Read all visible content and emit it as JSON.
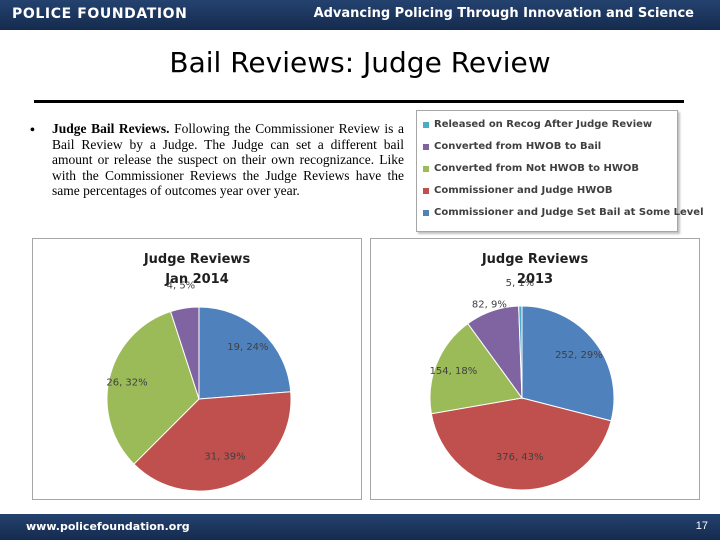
{
  "header": {
    "brand": "POLICE FOUNDATION",
    "tagline": "Advancing Policing Through Innovation and Science"
  },
  "slide": {
    "title": "Bail Reviews: Judge Review",
    "bullet_lead": "Judge Bail Reviews.",
    "bullet_body": "Following the Commissioner Review is a Bail Review by a Judge. The Judge can set a different bail amount or release the suspect on their own recognizance. Like with the Commissioner Reviews the Judge Reviews have the same percentages of outcomes year over year."
  },
  "legend": [
    {
      "label": "Released on Recog After Judge Review",
      "color": "#4bacc6"
    },
    {
      "label": "Converted from HWOB to Bail",
      "color": "#8064a2"
    },
    {
      "label": "Converted from Not HWOB to HWOB",
      "color": "#9bbb59"
    },
    {
      "label": "Commissioner and Judge HWOB",
      "color": "#c0504d"
    },
    {
      "label": "Commissioner and Judge Set Bail at Some Level",
      "color": "#4f81bd"
    }
  ],
  "colors": {
    "released": "#4bacc6",
    "hwob_to_bail": "#8064a2",
    "not_hwob_to_hwob": "#9bbb59",
    "both_hwob": "#c0504d",
    "set_bail": "#4f81bd",
    "bar": "#1b365f"
  },
  "chart_data": [
    {
      "type": "pie",
      "title_line1": "Judge Reviews",
      "title_line2": "Jan 2014",
      "slices": [
        {
          "category": "Commissioner and Judge Set Bail at Some Level",
          "value": 19,
          "label": "19, 24%",
          "color": "#4f81bd"
        },
        {
          "category": "Commissioner and Judge HWOB",
          "value": 31,
          "label": "31, 39%",
          "color": "#c0504d"
        },
        {
          "category": "Converted from Not HWOB to HWOB",
          "value": 26,
          "label": "26, 32%",
          "color": "#9bbb59"
        },
        {
          "category": "Converted from HWOB to Bail",
          "value": 4,
          "label": "4, 5%",
          "color": "#8064a2"
        }
      ]
    },
    {
      "type": "pie",
      "title_line1": "Judge Reviews",
      "title_line2": "2013",
      "slices": [
        {
          "category": "Commissioner and Judge Set Bail at Some Level",
          "value": 252,
          "label": "252, 29%",
          "color": "#4f81bd"
        },
        {
          "category": "Commissioner and Judge HWOB",
          "value": 376,
          "label": "376, 43%",
          "color": "#c0504d"
        },
        {
          "category": "Converted from Not HWOB to HWOB",
          "value": 154,
          "label": "154, 18%",
          "color": "#9bbb59"
        },
        {
          "category": "Converted from HWOB to Bail",
          "value": 82,
          "label": "82, 9%",
          "color": "#8064a2"
        },
        {
          "category": "Released on Recog After Judge Review",
          "value": 5,
          "label": "5, 1%",
          "color": "#4bacc6"
        }
      ]
    }
  ],
  "footer": {
    "url": "www.policefoundation.org",
    "page_number": "17"
  }
}
